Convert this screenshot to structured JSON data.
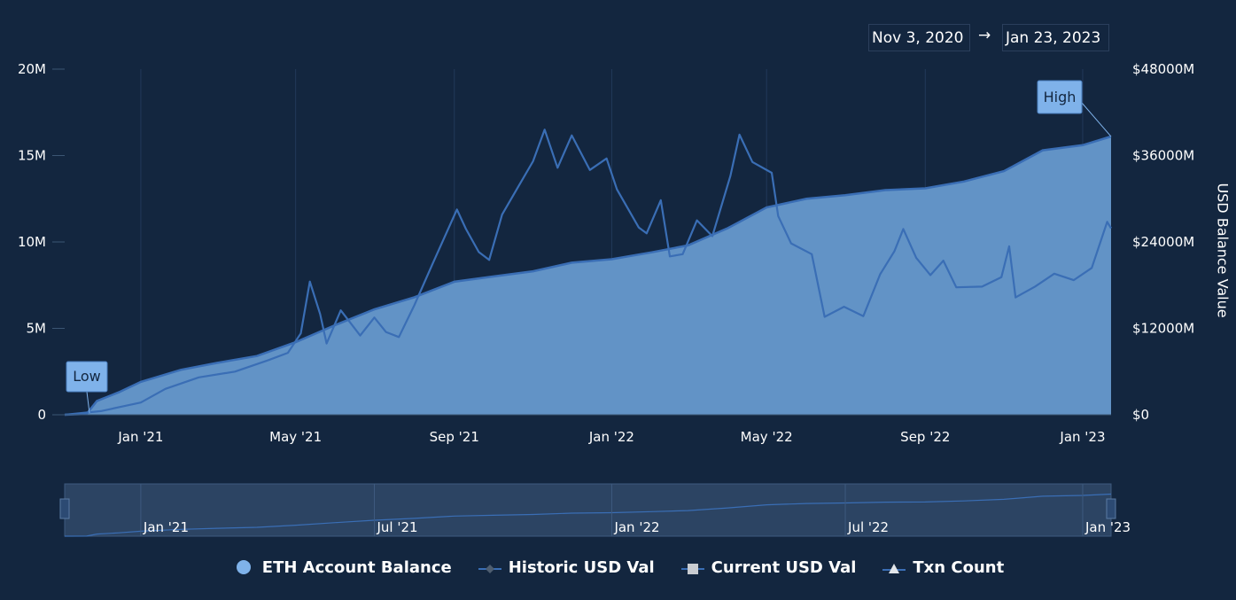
{
  "range_selector": {
    "from": "Nov 3, 2020",
    "arrow": "→",
    "to": "Jan 23, 2023"
  },
  "chart_data": {
    "type": "line",
    "x_type": "datetime",
    "x_range": [
      "2020-11-03",
      "2023-01-23"
    ],
    "x_ticks": [
      {
        "date": "2021-01-01",
        "label": "Jan '21"
      },
      {
        "date": "2021-05-01",
        "label": "May '21"
      },
      {
        "date": "2021-09-01",
        "label": "Sep '21"
      },
      {
        "date": "2022-01-01",
        "label": "Jan '22"
      },
      {
        "date": "2022-05-01",
        "label": "May '22"
      },
      {
        "date": "2022-09-01",
        "label": "Sep '22"
      },
      {
        "date": "2023-01-01",
        "label": "Jan '23"
      }
    ],
    "y_left": {
      "min": 0,
      "max": 20000000,
      "ticks": [
        {
          "value": 0,
          "label": "0"
        },
        {
          "value": 5000000,
          "label": "5M"
        },
        {
          "value": 10000000,
          "label": "10M"
        },
        {
          "value": 15000000,
          "label": "15M"
        },
        {
          "value": 20000000,
          "label": "20M"
        }
      ]
    },
    "y_right": {
      "title": "USD Balance Value",
      "min": 0,
      "max": 48000,
      "ticks": [
        {
          "value": 0,
          "label": "$0"
        },
        {
          "value": 12000,
          "label": "$12000M"
        },
        {
          "value": 24000,
          "label": "$24000M"
        },
        {
          "value": 36000,
          "label": "$36000M"
        },
        {
          "value": 48000,
          "label": "$48000M"
        }
      ]
    },
    "grid": "vertical",
    "legend_position": "bottom",
    "series": [
      {
        "name": "ETH Account Balance",
        "type": "area",
        "axis": "left",
        "color": "#6e9fd6",
        "points": [
          [
            "2020-11-03",
            0
          ],
          [
            "2020-11-20",
            50000
          ],
          [
            "2020-11-28",
            800000
          ],
          [
            "2020-12-15",
            1300000
          ],
          [
            "2021-01-01",
            1900000
          ],
          [
            "2021-02-01",
            2600000
          ],
          [
            "2021-03-01",
            3000000
          ],
          [
            "2021-04-01",
            3400000
          ],
          [
            "2021-05-01",
            4200000
          ],
          [
            "2021-06-01",
            5200000
          ],
          [
            "2021-07-01",
            6100000
          ],
          [
            "2021-08-01",
            6800000
          ],
          [
            "2021-09-01",
            7700000
          ],
          [
            "2021-10-01",
            8000000
          ],
          [
            "2021-11-01",
            8300000
          ],
          [
            "2021-12-01",
            8800000
          ],
          [
            "2022-01-01",
            9000000
          ],
          [
            "2022-02-01",
            9400000
          ],
          [
            "2022-03-01",
            9800000
          ],
          [
            "2022-04-01",
            10800000
          ],
          [
            "2022-05-01",
            12000000
          ],
          [
            "2022-06-01",
            12500000
          ],
          [
            "2022-07-01",
            12700000
          ],
          [
            "2022-08-01",
            13000000
          ],
          [
            "2022-09-01",
            13100000
          ],
          [
            "2022-10-01",
            13500000
          ],
          [
            "2022-11-01",
            14100000
          ],
          [
            "2022-12-01",
            15300000
          ],
          [
            "2023-01-01",
            15600000
          ],
          [
            "2023-01-23",
            16100000
          ]
        ]
      },
      {
        "name": "Historic USD Val",
        "type": "line",
        "axis": "right",
        "color": "#3a6eb5",
        "points": [
          [
            "2020-11-03",
            0
          ],
          [
            "2020-12-01",
            500
          ],
          [
            "2021-01-01",
            1700
          ],
          [
            "2021-01-20",
            3600
          ],
          [
            "2021-02-15",
            5200
          ],
          [
            "2021-03-15",
            6000
          ],
          [
            "2021-04-10",
            7600
          ],
          [
            "2021-04-25",
            8600
          ],
          [
            "2021-05-05",
            11300
          ],
          [
            "2021-05-12",
            18500
          ],
          [
            "2021-05-20",
            14000
          ],
          [
            "2021-05-25",
            9900
          ],
          [
            "2021-06-05",
            14500
          ],
          [
            "2021-06-20",
            11000
          ],
          [
            "2021-07-01",
            13500
          ],
          [
            "2021-07-10",
            11500
          ],
          [
            "2021-07-20",
            10800
          ],
          [
            "2021-08-01",
            15200
          ],
          [
            "2021-08-15",
            20900
          ],
          [
            "2021-09-03",
            28500
          ],
          [
            "2021-09-10",
            25800
          ],
          [
            "2021-09-20",
            22600
          ],
          [
            "2021-09-28",
            21500
          ],
          [
            "2021-10-08",
            27800
          ],
          [
            "2021-10-20",
            31500
          ],
          [
            "2021-11-01",
            35200
          ],
          [
            "2021-11-10",
            39600
          ],
          [
            "2021-11-20",
            34300
          ],
          [
            "2021-12-01",
            38800
          ],
          [
            "2021-12-15",
            34000
          ],
          [
            "2021-12-28",
            35600
          ],
          [
            "2022-01-05",
            31300
          ],
          [
            "2022-01-22",
            26000
          ],
          [
            "2022-01-28",
            25200
          ],
          [
            "2022-02-08",
            29800
          ],
          [
            "2022-02-15",
            22000
          ],
          [
            "2022-02-25",
            22300
          ],
          [
            "2022-03-08",
            27000
          ],
          [
            "2022-03-20",
            24800
          ],
          [
            "2022-04-03",
            33200
          ],
          [
            "2022-04-10",
            38900
          ],
          [
            "2022-04-20",
            35100
          ],
          [
            "2022-05-05",
            33600
          ],
          [
            "2022-05-10",
            27600
          ],
          [
            "2022-05-20",
            23800
          ],
          [
            "2022-06-05",
            22300
          ],
          [
            "2022-06-15",
            13600
          ],
          [
            "2022-06-30",
            15000
          ],
          [
            "2022-07-15",
            13700
          ],
          [
            "2022-07-28",
            19500
          ],
          [
            "2022-08-08",
            22700
          ],
          [
            "2022-08-15",
            25800
          ],
          [
            "2022-08-25",
            21800
          ],
          [
            "2022-09-05",
            19400
          ],
          [
            "2022-09-15",
            21400
          ],
          [
            "2022-09-25",
            17700
          ],
          [
            "2022-10-15",
            17800
          ],
          [
            "2022-10-30",
            19100
          ],
          [
            "2022-11-05",
            23400
          ],
          [
            "2022-11-10",
            16300
          ],
          [
            "2022-11-25",
            17800
          ],
          [
            "2022-12-10",
            19600
          ],
          [
            "2022-12-25",
            18700
          ],
          [
            "2023-01-08",
            20400
          ],
          [
            "2023-01-20",
            26800
          ],
          [
            "2023-01-23",
            25900
          ]
        ]
      }
    ],
    "annotations": [
      {
        "label": "Low",
        "date": "2020-11-03",
        "value": 0
      },
      {
        "label": "High",
        "date": "2023-01-23",
        "value": 16100000
      }
    ],
    "navigator": {
      "ticks": [
        "Jan '21",
        "Jul '21",
        "Jan '22",
        "Jul '22",
        "Jan '23"
      ]
    },
    "legend": [
      {
        "name": "ETH Account Balance",
        "symbol": "circle",
        "color": "#7fb2ea"
      },
      {
        "name": "Historic USD Val",
        "symbol": "diamond-line",
        "color": "#3a6eb5"
      },
      {
        "name": "Current USD Val",
        "symbol": "square-line",
        "color": "#3a6eb5"
      },
      {
        "name": "Txn Count",
        "symbol": "triangle-line",
        "color": "#3a6eb5"
      }
    ]
  }
}
